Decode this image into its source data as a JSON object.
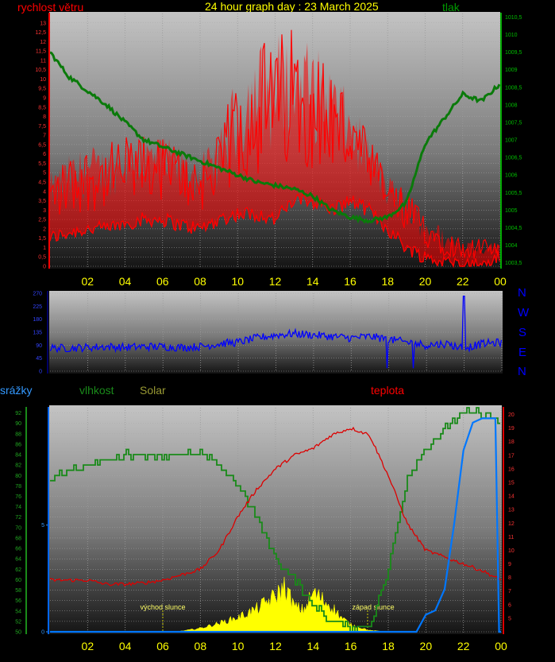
{
  "header": {
    "title": "24 hour graph day : 23 March 2025",
    "left_label": "rychlost větru",
    "right_label": "tlak"
  },
  "wind_dir_letters": [
    "N",
    "W",
    "S",
    "E",
    "N"
  ],
  "bottom_legend": {
    "precip": "srážky",
    "humidity": "vlhkost",
    "solar": "Solar",
    "temperature": "teplota"
  },
  "annotations": {
    "sunrise": "východ slunce",
    "sunset": "západ slunce"
  },
  "colors": {
    "wind": "#ff0000",
    "pressure": "#008000",
    "direction": "#0000ff",
    "humidity": "#1a8a1a",
    "solar": "#ffff00",
    "temperature": "#dd0000",
    "precip": "#0077ff",
    "x_ticks": "#ffff00"
  },
  "chart_data": [
    {
      "type": "line",
      "title": "24 hour graph day : 23 March 2025",
      "x_ticks": [
        "02",
        "04",
        "06",
        "08",
        "10",
        "12",
        "14",
        "16",
        "18",
        "20",
        "22",
        "00"
      ],
      "left_axis": {
        "label": "rychlost větru",
        "range": [
          0,
          13.5
        ],
        "ticks": [
          "0",
          "0,5",
          "1",
          "1,5",
          "2",
          "2,5",
          "3",
          "3,5",
          "4",
          "4,5",
          "5",
          "5,5",
          "6",
          "6,5",
          "7",
          "7,5",
          "8",
          "8,5",
          "9",
          "9,5",
          "10",
          "10,5",
          "11",
          "11,5",
          "12",
          "12,5",
          "13"
        ]
      },
      "right_axis": {
        "label": "tlak",
        "range": [
          1003.4,
          1010.6
        ],
        "ticks": [
          "1003,5",
          "1004",
          "1004,5",
          "1005",
          "1005,5",
          "1006",
          "1006,5",
          "1007",
          "1007,5",
          "1008",
          "1008,5",
          "1009",
          "1009,5",
          "1010",
          "1010,5"
        ]
      },
      "series": [
        {
          "name": "rychlost větru",
          "axis": "left",
          "hours": [
            0,
            1,
            2,
            3,
            4,
            5,
            6,
            7,
            8,
            9,
            10,
            11,
            12,
            13,
            14,
            15,
            16,
            17,
            18,
            19,
            20,
            21,
            22,
            23,
            24
          ],
          "low": [
            1.5,
            1.8,
            2.0,
            2.0,
            2.3,
            2.5,
            2.5,
            2.2,
            2.0,
            2.5,
            2.8,
            2.8,
            2.5,
            3.5,
            3.5,
            3.0,
            3.5,
            3.0,
            2.0,
            1.0,
            0.5,
            0.2,
            0.1,
            0.1,
            0.5
          ],
          "high": [
            5.0,
            6.0,
            6.5,
            6.5,
            7.0,
            7.0,
            7.0,
            6.5,
            6.0,
            7.0,
            10.5,
            12.0,
            12.5,
            13.0,
            12.0,
            11.0,
            9.0,
            7.0,
            5.0,
            4.0,
            3.0,
            2.0,
            1.5,
            1.5,
            1.2
          ]
        },
        {
          "name": "tlak",
          "axis": "right",
          "hours": [
            0,
            1,
            2,
            3,
            4,
            5,
            6,
            7,
            8,
            9,
            10,
            11,
            12,
            13,
            14,
            15,
            16,
            17,
            18,
            19,
            20,
            21,
            22,
            23,
            24
          ],
          "values": [
            1009.5,
            1008.8,
            1008.4,
            1008.0,
            1007.5,
            1007.0,
            1006.8,
            1006.6,
            1006.4,
            1006.2,
            1006.0,
            1005.8,
            1005.7,
            1005.6,
            1005.4,
            1005.0,
            1004.8,
            1004.7,
            1004.8,
            1005.2,
            1006.9,
            1007.6,
            1008.3,
            1008.1,
            1008.6
          ]
        }
      ]
    },
    {
      "type": "line",
      "x_ticks": [
        "02",
        "04",
        "06",
        "08",
        "10",
        "12",
        "14",
        "16",
        "18",
        "20",
        "22",
        "00"
      ],
      "y_axis": {
        "range": [
          0,
          270
        ],
        "ticks": [
          "0",
          "45",
          "90",
          "135",
          "180",
          "225",
          "270"
        ]
      },
      "series": [
        {
          "name": "wind direction",
          "hours": [
            0,
            1,
            2,
            3,
            4,
            5,
            6,
            7,
            8,
            9,
            10,
            11,
            12,
            13,
            14,
            15,
            16,
            17,
            18,
            19,
            20,
            21,
            22,
            23,
            24
          ],
          "values": [
            80,
            80,
            82,
            85,
            82,
            85,
            85,
            82,
            85,
            95,
            100,
            115,
            125,
            130,
            125,
            120,
            115,
            120,
            110,
            100,
            90,
            95,
            80,
            95,
            100
          ]
        }
      ]
    },
    {
      "type": "line",
      "x_ticks": [
        "02",
        "04",
        "06",
        "08",
        "10",
        "12",
        "14",
        "16",
        "18",
        "20",
        "22",
        "00"
      ],
      "left_axis": {
        "label": "vlhkost",
        "range": [
          50,
          93
        ],
        "ticks": [
          "50",
          "52",
          "54",
          "56",
          "58",
          "60",
          "62",
          "64",
          "66",
          "68",
          "70",
          "72",
          "74",
          "76",
          "78",
          "80",
          "82",
          "84",
          "86",
          "88",
          "90",
          "92"
        ]
      },
      "precip_axis": {
        "label": "srážky",
        "range": [
          0,
          10
        ],
        "ticks": [
          "0",
          "5"
        ]
      },
      "right_axis": {
        "label": "teplota",
        "range": [
          4,
          20.5
        ],
        "ticks": [
          "5",
          "6",
          "7",
          "8",
          "9",
          "10",
          "11",
          "12",
          "13",
          "14",
          "15",
          "16",
          "17",
          "18",
          "19",
          "20"
        ]
      },
      "series": [
        {
          "name": "vlhkost",
          "axis": "left",
          "hours": [
            0,
            1,
            2,
            3,
            4,
            5,
            6,
            7,
            8,
            9,
            10,
            11,
            12,
            13,
            14,
            15,
            16,
            17,
            18,
            19,
            20,
            21,
            22,
            23,
            24
          ],
          "values": [
            79,
            81,
            82,
            83,
            84,
            84,
            84,
            84,
            84,
            82,
            78,
            72,
            64,
            60,
            55,
            52,
            51,
            51,
            62,
            80,
            85,
            89,
            92,
            92,
            90
          ]
        },
        {
          "name": "teplota",
          "axis": "right",
          "hours": [
            0,
            1,
            2,
            3,
            4,
            5,
            6,
            7,
            8,
            9,
            10,
            11,
            12,
            13,
            14,
            15,
            16,
            17,
            18,
            19,
            20,
            21,
            22,
            23,
            24
          ],
          "values": [
            7.8,
            7.8,
            7.8,
            7.5,
            7.5,
            7.6,
            7.8,
            8.2,
            8.6,
            10.0,
            12.5,
            14.5,
            16.0,
            17.0,
            17.5,
            18.5,
            19.0,
            18.5,
            15.5,
            12.0,
            10.0,
            9.5,
            9.0,
            8.5,
            7.8
          ]
        },
        {
          "name": "srážky",
          "axis": "precip",
          "hours": [
            0,
            19.5,
            20,
            20.5,
            21,
            21.5,
            22,
            22.5,
            23,
            23.7,
            23.9,
            24
          ],
          "values": [
            0,
            0,
            0.8,
            1.0,
            2.0,
            5.0,
            8.5,
            9.8,
            10.0,
            10.0,
            0,
            0
          ]
        },
        {
          "name": "Solar",
          "axis": "solar",
          "hours": [
            6,
            7,
            8,
            9,
            10,
            11,
            12,
            12.5,
            13,
            13.5,
            14,
            14.5,
            15,
            15.5,
            16,
            17,
            18
          ],
          "values": [
            0,
            10,
            50,
            120,
            200,
            320,
            500,
            640,
            350,
            300,
            550,
            450,
            350,
            200,
            100,
            20,
            0
          ]
        }
      ]
    }
  ]
}
